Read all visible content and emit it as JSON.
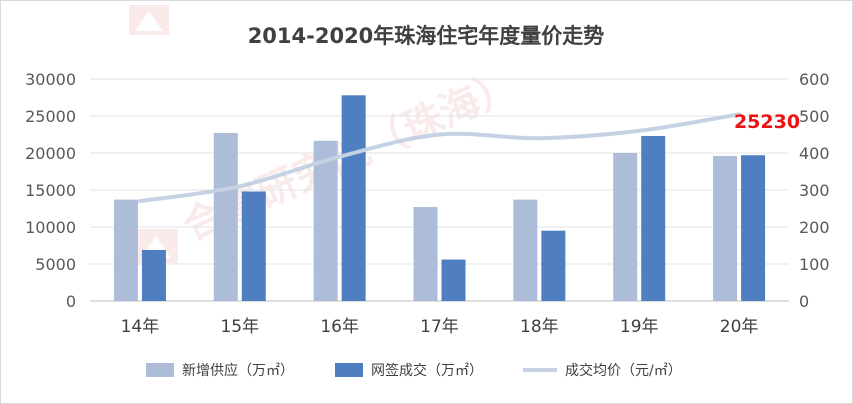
{
  "chart_data": {
    "type": "bar",
    "title": "2014-2020年珠海住宅年度量价走势",
    "categories": [
      "14年",
      "15年",
      "16年",
      "17年",
      "18年",
      "19年",
      "20年"
    ],
    "series": [
      {
        "name": "新增供应（万㎡）",
        "type": "bar",
        "axis": "right",
        "color": "#adbcd9",
        "values": [
          274,
          454,
          433,
          254,
          274,
          400,
          392
        ]
      },
      {
        "name": "网签成交（万㎡）",
        "type": "bar",
        "axis": "right",
        "color": "#4f7fc0",
        "values": [
          138,
          296,
          556,
          112,
          190,
          446,
          394
        ]
      },
      {
        "name": "成交均价（元/㎡）",
        "type": "line",
        "axis": "left",
        "color": "#c5d2e4",
        "values": [
          13500,
          15500,
          19500,
          22500,
          22000,
          23000,
          25230
        ]
      }
    ],
    "left_axis": {
      "ylim": [
        0,
        30000
      ],
      "ticks": [
        "0",
        "5000",
        "10000",
        "15000",
        "20000",
        "25000",
        "30000"
      ]
    },
    "right_axis": {
      "ylim": [
        0,
        600
      ],
      "ticks": [
        "0",
        "100",
        "200",
        "300",
        "400",
        "500",
        "600"
      ]
    },
    "annotation": {
      "text": "25230",
      "color": "#ee1111"
    },
    "legend_position": "bottom",
    "grid": true
  },
  "watermark": {
    "text": "合富研究院（珠海）"
  }
}
